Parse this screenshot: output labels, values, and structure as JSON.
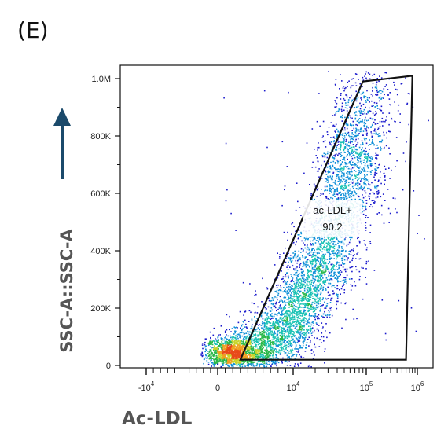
{
  "panel_label": "(E)",
  "chart_data": {
    "type": "scatter",
    "style": "pseudocolor density dot plot",
    "title": "",
    "xlabel": "Ac-LDL",
    "ylabel": "SSC-A::SSC-A",
    "x_scale": "biexponential",
    "y_scale": "linear",
    "xlim": [
      -30000,
      1000000
    ],
    "ylim": [
      0,
      1000000
    ],
    "x_ticks": [
      {
        "value": -10000,
        "base": "-10",
        "exp": "4"
      },
      {
        "value": 0,
        "base": "0",
        "exp": ""
      },
      {
        "value": 10000,
        "base": "10",
        "exp": "4"
      },
      {
        "value": 100000,
        "base": "10",
        "exp": "5"
      },
      {
        "value": 1000000,
        "base": "10",
        "exp": "6"
      }
    ],
    "y_ticks": [
      {
        "value": 0,
        "label": "0"
      },
      {
        "value": 200000,
        "label": "200K"
      },
      {
        "value": 400000,
        "label": "400K"
      },
      {
        "value": 600000,
        "label": "600K"
      },
      {
        "value": 800000,
        "label": "800K"
      },
      {
        "value": 1000000,
        "label": "1.0M"
      }
    ],
    "gate": {
      "name": "ac-LDL+",
      "percent": "90.2",
      "polygon": [
        [
          3000,
          20000
        ],
        [
          90000,
          990000
        ],
        [
          800000,
          1010000
        ],
        [
          600000,
          20000
        ]
      ]
    },
    "density_colors": [
      "#1a1acc",
      "#0f8fd8",
      "#19c2b4",
      "#2ab84a",
      "#c8d42a",
      "#f0a020",
      "#e84a1a"
    ],
    "arrow_color": "#1b4a6b",
    "populations": [
      {
        "x_center": 60000,
        "y_center": 330000,
        "spread": "main positive population"
      },
      {
        "x_center": -1000,
        "y_center": 30000,
        "spread": "low debris near origin"
      }
    ]
  }
}
